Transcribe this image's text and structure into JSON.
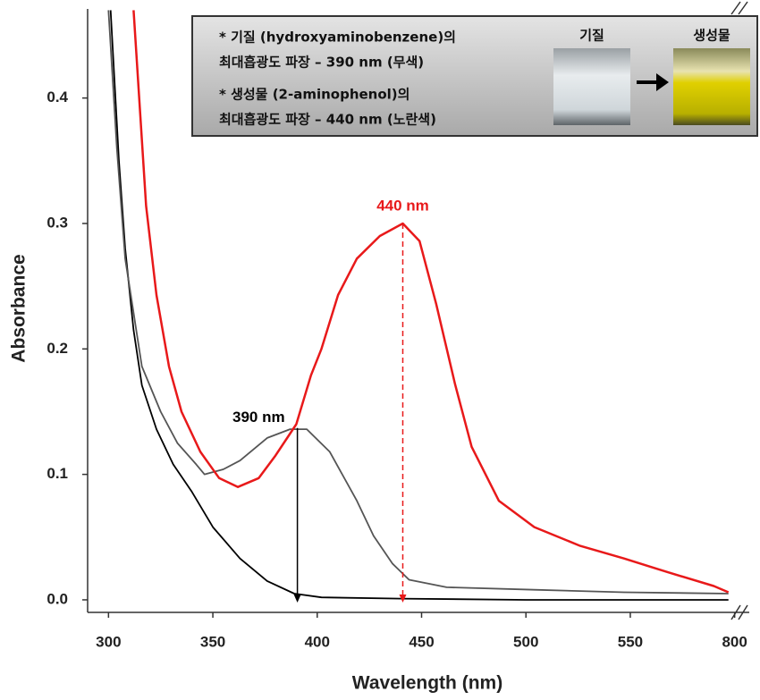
{
  "chart_data": {
    "type": "line",
    "xlabel": "Wavelength (nm)",
    "ylabel": "Absorbance",
    "xlim": [
      290,
      807
    ],
    "x_break": [
      595,
      795
    ],
    "ylim": [
      -0.01,
      0.471
    ],
    "xticks": [
      300,
      350,
      400,
      450,
      500,
      550,
      800
    ],
    "yticks": [
      {
        "value": 0,
        "label": "0.0"
      },
      0.1,
      0.2,
      0.3,
      0.4
    ],
    "series": [
      {
        "color": "#000000",
        "x": [
          301,
          305,
          308,
          312,
          316,
          323,
          331,
          340,
          350,
          363,
          376,
          389,
          402,
          440,
          500,
          797
        ],
        "values": [
          0.47,
          0.35,
          0.28,
          0.215,
          0.171,
          0.136,
          0.108,
          0.086,
          0.058,
          0.033,
          0.015,
          0.005,
          0.002,
          0.001,
          0.0,
          0.0
        ]
      },
      {
        "color": "#555555",
        "x": [
          300,
          304,
          308,
          316,
          325,
          333,
          342,
          346,
          355,
          363,
          376,
          387,
          395,
          406,
          419,
          427,
          436,
          444,
          462,
          504,
          547,
          797
        ],
        "values": [
          0.47,
          0.36,
          0.272,
          0.186,
          0.15,
          0.125,
          0.108,
          0.1,
          0.104,
          0.111,
          0.129,
          0.136,
          0.136,
          0.118,
          0.079,
          0.051,
          0.029,
          0.016,
          0.01,
          0.008,
          0.006,
          0.005
        ]
      },
      {
        "color": "#e8191a",
        "x": [
          312,
          318,
          323,
          329,
          335,
          344,
          353,
          362,
          372,
          380,
          390,
          397,
          402,
          410,
          419,
          430,
          441,
          449,
          457,
          466,
          474,
          487,
          504,
          526,
          547,
          568,
          590,
          797
        ],
        "values": [
          0.47,
          0.314,
          0.243,
          0.186,
          0.15,
          0.118,
          0.097,
          0.09,
          0.097,
          0.115,
          0.14,
          0.179,
          0.2,
          0.243,
          0.272,
          0.29,
          0.3,
          0.286,
          0.236,
          0.172,
          0.122,
          0.079,
          0.058,
          0.043,
          0.033,
          0.022,
          0.011,
          0.006
        ]
      }
    ],
    "annotations": [
      {
        "text": "390 nm",
        "x": 390.5,
        "y": 0.137,
        "color": "#000000"
      },
      {
        "text": "440 nm",
        "x": 441,
        "y": 0.3,
        "color": "#e8191a"
      }
    ],
    "inset_text": [
      "* 기질 (hydroxyaminobenzene)의",
      "최대흡광도 파장 – 390 nm (무색)",
      "* 생성물 (2-aminophenol)의",
      "최대흡광도 파장 – 440 nm (노란색)"
    ],
    "inset_labels": [
      "기질",
      "생성물"
    ]
  }
}
